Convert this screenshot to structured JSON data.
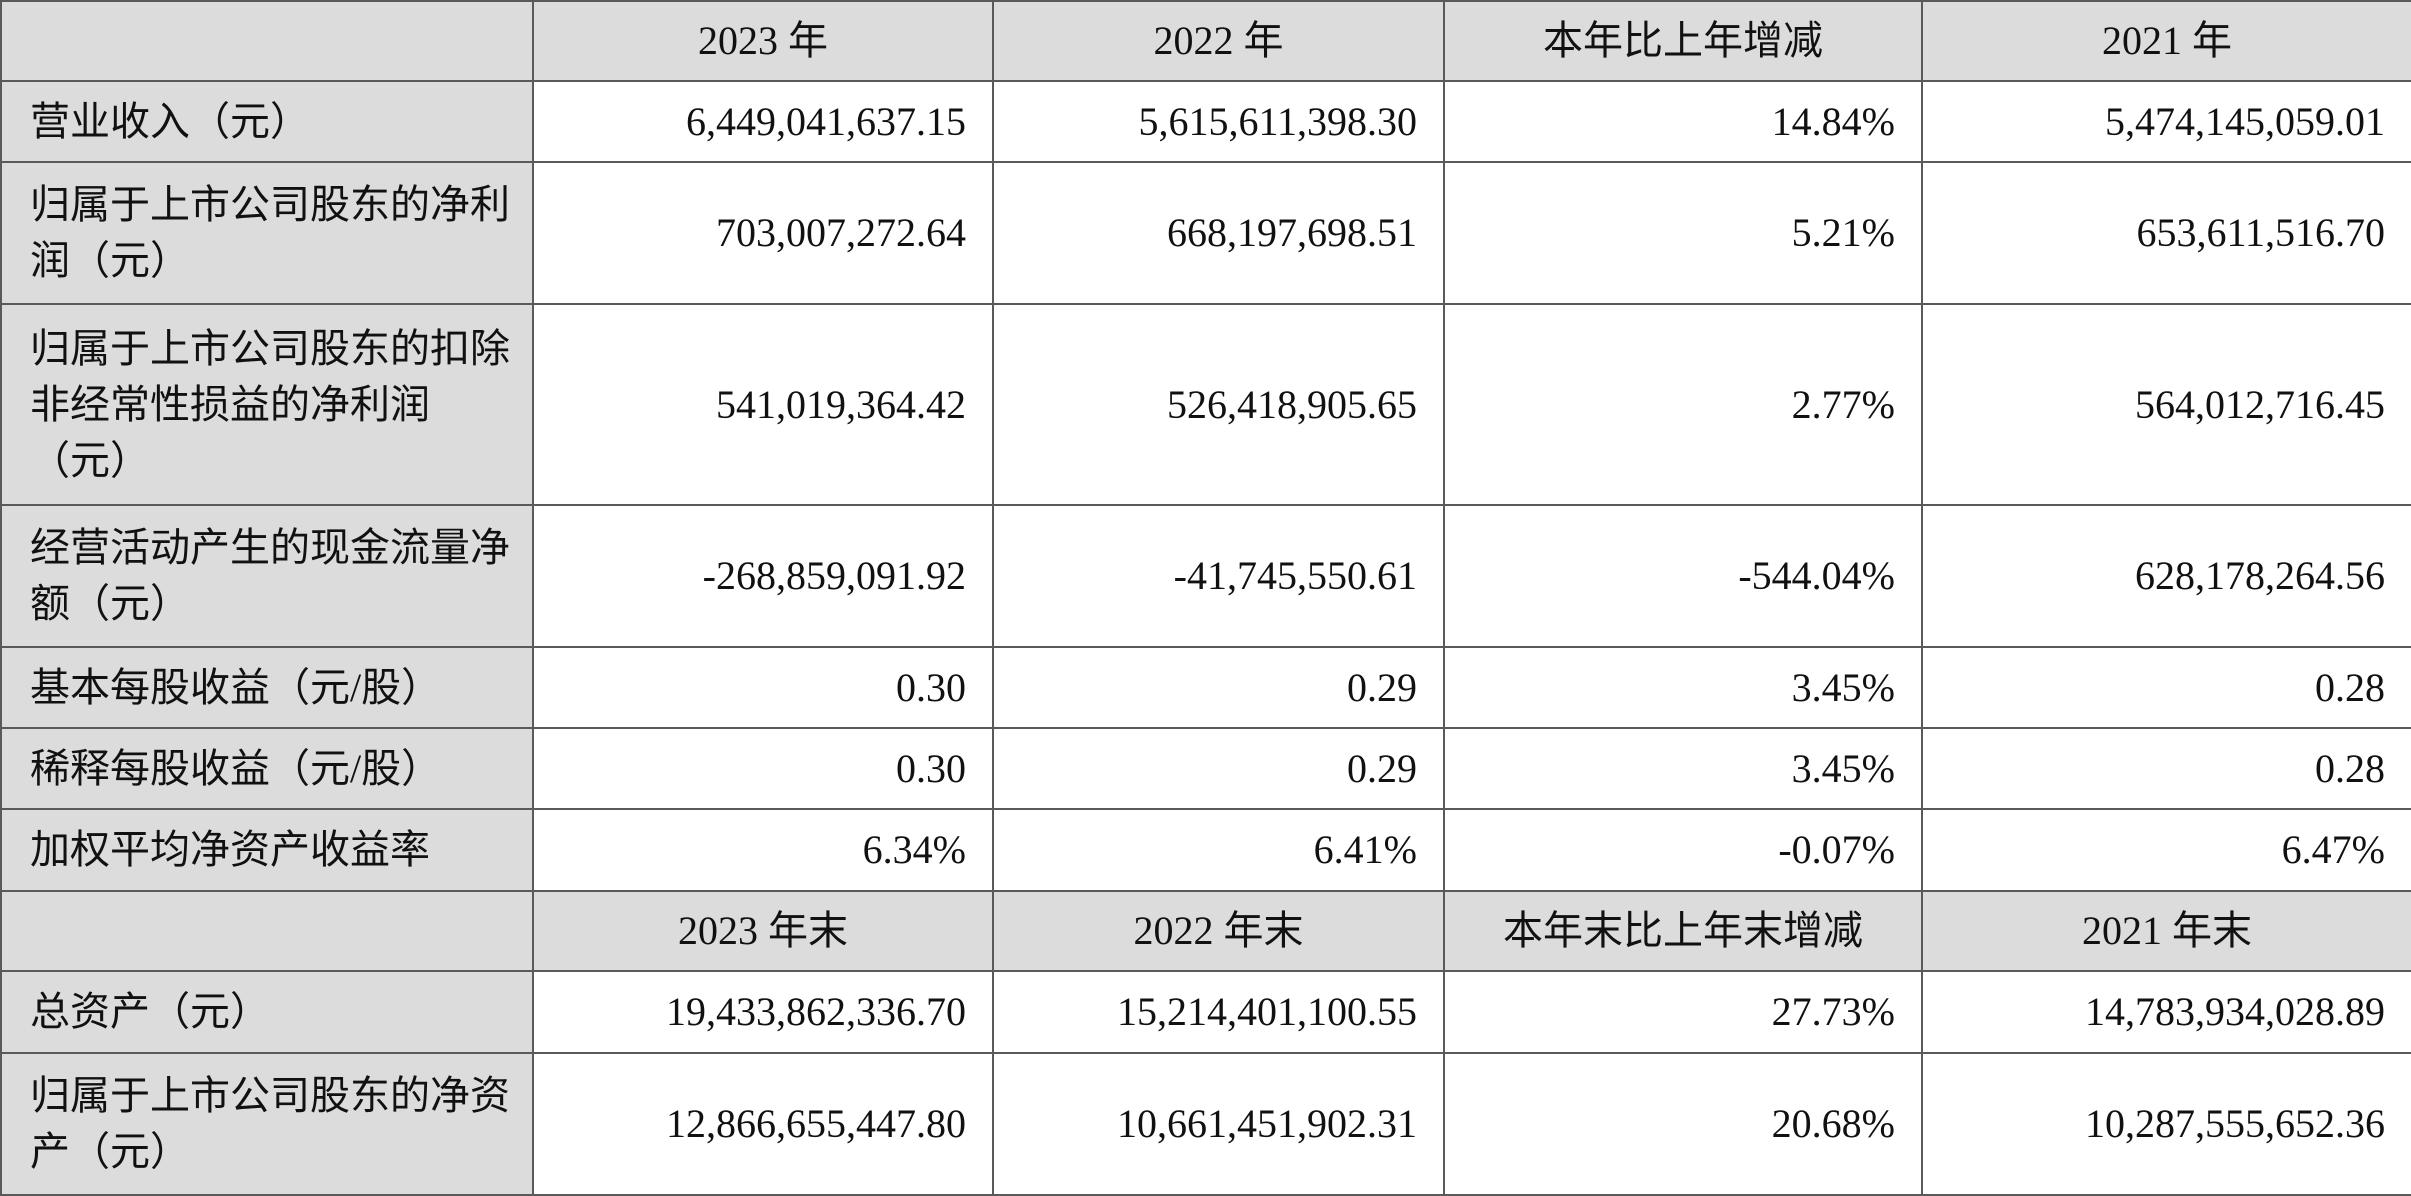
{
  "header_period": {
    "corner": "",
    "columns": [
      "2023 年",
      "2022 年",
      "本年比上年增减",
      "2021 年"
    ]
  },
  "rows_period": [
    {
      "label": "营业收入（元）",
      "values": [
        "6,449,041,637.15",
        "5,615,611,398.30",
        "14.84%",
        "5,474,145,059.01"
      ]
    },
    {
      "label": "归属于上市公司股东的净利润（元）",
      "values": [
        "703,007,272.64",
        "668,197,698.51",
        "5.21%",
        "653,611,516.70"
      ]
    },
    {
      "label": "归属于上市公司股东的扣除非经常性损益的净利润（元）",
      "values": [
        "541,019,364.42",
        "526,418,905.65",
        "2.77%",
        "564,012,716.45"
      ]
    },
    {
      "label": "经营活动产生的现金流量净额（元）",
      "values": [
        "-268,859,091.92",
        "-41,745,550.61",
        "-544.04%",
        "628,178,264.56"
      ]
    },
    {
      "label": "基本每股收益（元/股）",
      "values": [
        "0.30",
        "0.29",
        "3.45%",
        "0.28"
      ]
    },
    {
      "label": "稀释每股收益（元/股）",
      "values": [
        "0.30",
        "0.29",
        "3.45%",
        "0.28"
      ]
    },
    {
      "label": "加权平均净资产收益率",
      "values": [
        "6.34%",
        "6.41%",
        "-0.07%",
        "6.47%"
      ]
    }
  ],
  "header_end": {
    "corner": "",
    "columns": [
      "2023 年末",
      "2022 年末",
      "本年末比上年末增减",
      "2021 年末"
    ]
  },
  "rows_end": [
    {
      "label": "总资产（元）",
      "values": [
        "19,433,862,336.70",
        "15,214,401,100.55",
        "27.73%",
        "14,783,934,028.89"
      ]
    },
    {
      "label": "归属于上市公司股东的净资产（元）",
      "values": [
        "12,866,655,447.80",
        "10,661,451,902.31",
        "20.68%",
        "10,287,555,652.36"
      ]
    }
  ]
}
